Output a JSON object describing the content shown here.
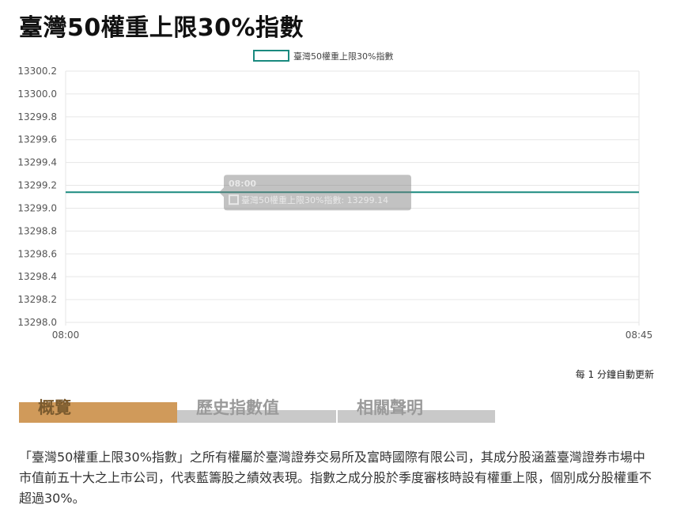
{
  "page": {
    "title": "臺灣50權重上限30%指數",
    "update_note": "每 1 分鐘自動更新"
  },
  "chart_data": {
    "type": "line",
    "x": [
      "08:00",
      "08:45"
    ],
    "series": [
      {
        "name": "臺灣50權重上限30%指數",
        "values": [
          13299.14,
          13299.14
        ],
        "color": "#1a8a7f"
      }
    ],
    "xlim": [
      "08:00",
      "08:45"
    ],
    "ylim": [
      13298.0,
      13300.2
    ],
    "y_ticks": [
      "13300.2",
      "13300.0",
      "13299.8",
      "13299.6",
      "13299.4",
      "13299.2",
      "13299.0",
      "13298.8",
      "13298.6",
      "13298.4",
      "13298.2",
      "13298.0"
    ],
    "x_ticks": [
      "08:00",
      "08:45"
    ],
    "grid": true,
    "legend_position": "top-center",
    "tooltip": {
      "time": "08:00",
      "series_label": "臺灣50權重上限30%指數",
      "value": "13299.14"
    }
  },
  "tabs": [
    {
      "label": "概覽",
      "active": true
    },
    {
      "label": "歷史指數值",
      "active": false
    },
    {
      "label": "相關聲明",
      "active": false
    }
  ],
  "description": "「臺灣50權重上限30%指數」之所有權屬於臺灣證券交易所及富時國際有限公司，其成分股涵蓋臺灣證券市場中市值前五十大之上市公司，代表藍籌股之績效表現。指數之成分股於季度審核時設有權重上限，個別成分股權重不超過30%。",
  "colors": {
    "line": "#1a8a7f",
    "tab_active": "#d09a5a",
    "tab_inactive": "#c9c9c9"
  }
}
